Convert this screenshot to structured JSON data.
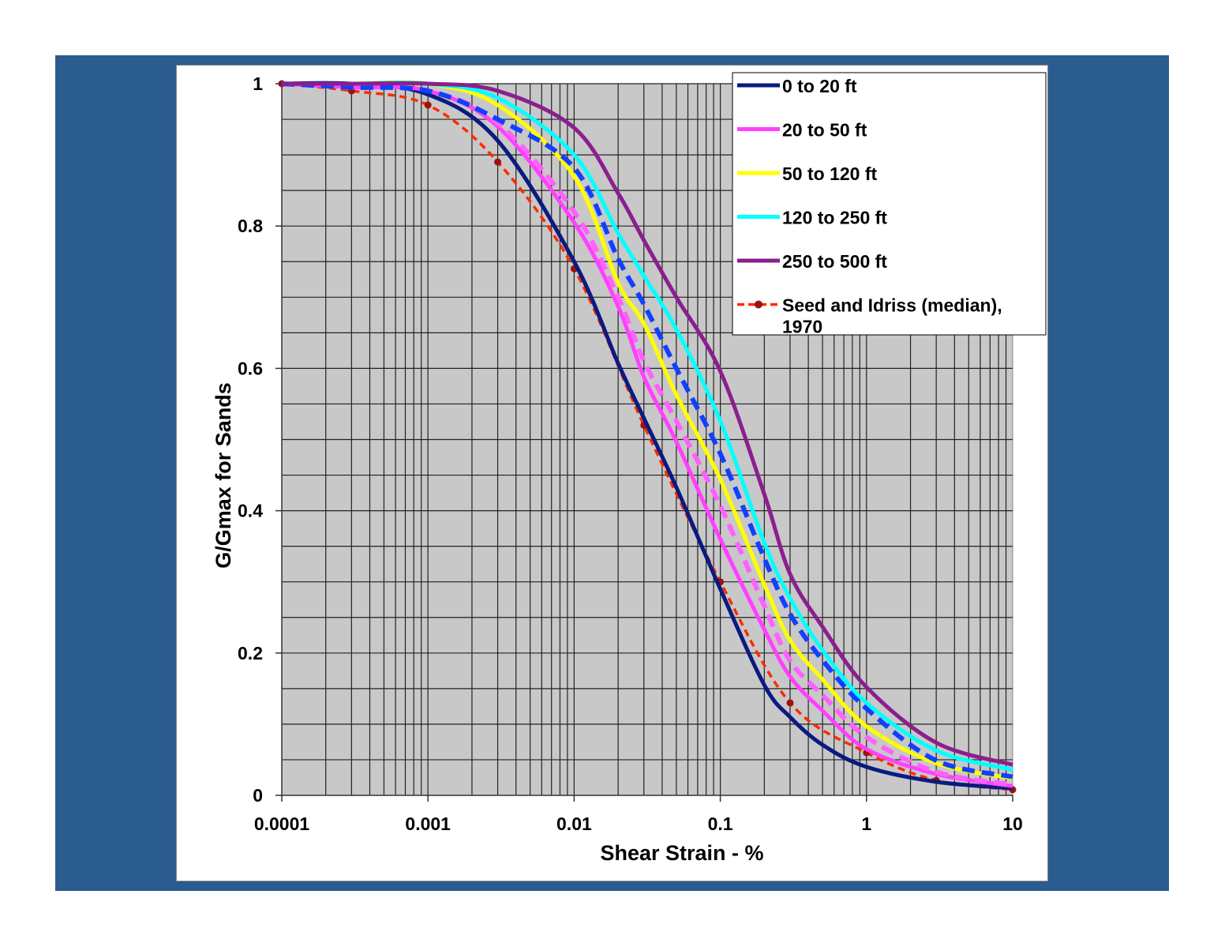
{
  "chart_data": {
    "type": "line",
    "title": "",
    "xlabel": "Shear Strain - %",
    "ylabel": "G/Gmax for Sands",
    "xscale": "log",
    "xlim": [
      0.0001,
      10
    ],
    "ylim": [
      0,
      1
    ],
    "x_ticks": [
      "0.0001",
      "0.001",
      "0.01",
      "0.1",
      "1",
      "10"
    ],
    "y_ticks": [
      "0",
      "0.2",
      "0.4",
      "0.6",
      "0.8",
      "1"
    ],
    "grid": true,
    "legend_position": "top-right",
    "x": [
      0.0001,
      0.0003,
      0.001,
      0.003,
      0.01,
      0.02,
      0.03,
      0.05,
      0.1,
      0.2,
      0.3,
      0.5,
      1,
      3,
      10
    ],
    "series": [
      {
        "name": "0 to 20 ft",
        "color": "#0a1a80",
        "style": "solid",
        "in_legend": true,
        "values": [
          1.0,
          1.0,
          0.985,
          0.92,
          0.75,
          0.607,
          0.53,
          0.433,
          0.29,
          0.155,
          0.11,
          0.071,
          0.04,
          0.019,
          0.01
        ]
      },
      {
        "name": "20 to 50 ft",
        "color": "#ff40ff",
        "style": "solid",
        "in_legend": true,
        "values": [
          1.0,
          0.995,
          0.99,
          0.94,
          0.805,
          0.687,
          0.588,
          0.497,
          0.36,
          0.233,
          0.167,
          0.119,
          0.065,
          0.03,
          0.013
        ]
      },
      {
        "name": "",
        "color": "#ff60ff",
        "style": "dashed",
        "in_legend": false,
        "values": [
          1.0,
          0.995,
          0.99,
          0.945,
          0.82,
          0.7,
          0.61,
          0.526,
          0.407,
          0.266,
          0.189,
          0.141,
          0.082,
          0.033,
          0.015
        ]
      },
      {
        "name": "50 to 120 ft",
        "color": "#ffff00",
        "style": "solid",
        "in_legend": true,
        "values": [
          1.0,
          1.0,
          1.0,
          0.97,
          0.87,
          0.72,
          0.663,
          0.563,
          0.444,
          0.296,
          0.218,
          0.163,
          0.097,
          0.045,
          0.024
        ]
      },
      {
        "name": "",
        "color": "#1040ff",
        "style": "dashed",
        "in_legend": false,
        "values": [
          1.0,
          0.995,
          0.99,
          0.95,
          0.882,
          0.754,
          0.69,
          0.6,
          0.48,
          0.333,
          0.255,
          0.19,
          0.122,
          0.049,
          0.026
        ]
      },
      {
        "name": "120 to 250 ft",
        "color": "#00ffff",
        "style": "solid",
        "in_legend": true,
        "values": [
          1.0,
          1.0,
          1.0,
          0.98,
          0.9,
          0.79,
          0.73,
          0.655,
          0.526,
          0.355,
          0.277,
          0.204,
          0.13,
          0.063,
          0.036
        ]
      },
      {
        "name": "250 to 500 ft",
        "color": "#8b1f8f",
        "style": "solid",
        "in_legend": true,
        "values": [
          1.0,
          1.0,
          1.0,
          0.99,
          0.938,
          0.846,
          0.78,
          0.7,
          0.596,
          0.423,
          0.311,
          0.237,
          0.152,
          0.074,
          0.043
        ]
      },
      {
        "name": "Seed and Idriss (median), 1970",
        "color": "#ff2a00",
        "marker_color": "#a01010",
        "style": "dashed-markers",
        "in_legend": true,
        "points_x": [
          0.0001,
          0.0003,
          0.001,
          0.003,
          0.01,
          0.03,
          0.1,
          0.3,
          1,
          3,
          10
        ],
        "points_y": [
          1.0,
          0.99,
          0.97,
          0.89,
          0.74,
          0.52,
          0.3,
          0.13,
          0.06,
          0.021,
          0.008
        ]
      }
    ]
  },
  "colors": {
    "background": "#2b5c8f",
    "plot_area": "#c8c8c8"
  }
}
